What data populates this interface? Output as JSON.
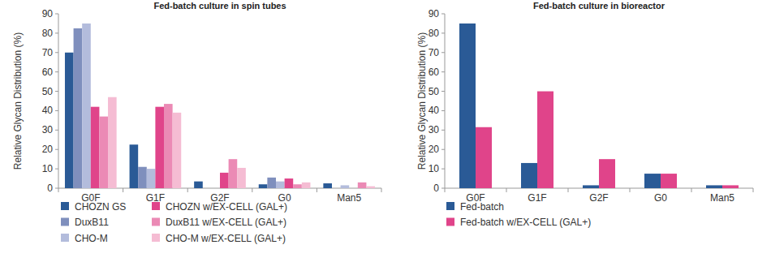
{
  "chart_data": [
    {
      "type": "bar",
      "title": "Fed-batch culture in spin tubes",
      "y_label": "Relative Glycan Distribution (%)",
      "categories": [
        "G0F",
        "G1F",
        "G2F",
        "G0",
        "Man5"
      ],
      "series": [
        {
          "name": "CHOZN GS",
          "color": "#2a5a96",
          "values": [
            70,
            22.5,
            3.5,
            2,
            2.5
          ]
        },
        {
          "name": "DuxB11",
          "color": "#7f8fbd",
          "values": [
            82.5,
            11,
            0,
            5.5,
            0
          ]
        },
        {
          "name": "CHO-M",
          "color": "#b3bcdc",
          "values": [
            85,
            10,
            0,
            3.5,
            1.5
          ]
        },
        {
          "name": "CHOZN w/EX-CELL (GAL+)",
          "color": "#e0448a",
          "values": [
            42,
            42,
            8,
            5,
            0
          ]
        },
        {
          "name": "DuxB11 w/EX-CELL (GAL+)",
          "color": "#eb8ab5",
          "values": [
            37,
            43.5,
            15,
            2,
            3
          ]
        },
        {
          "name": "CHO-M w/EX-CELL (GAL+)",
          "color": "#f5bcd3",
          "values": [
            47,
            39,
            10.5,
            3,
            1
          ]
        }
      ],
      "ylim": [
        0,
        90
      ],
      "yticks": [
        0,
        10,
        20,
        30,
        40,
        50,
        60,
        70,
        80,
        90
      ],
      "grid": false,
      "legend": "bottom"
    },
    {
      "type": "bar",
      "title": "Fed-batch culture in bioreactor",
      "y_label": "Relative Glycan Distribution (%)",
      "categories": [
        "G0F",
        "G1F",
        "G2F",
        "G0",
        "Man5"
      ],
      "series": [
        {
          "name": "Fed-batch",
          "color": "#2a5a96",
          "values": [
            85,
            13,
            1.5,
            7.5,
            1.5
          ]
        },
        {
          "name": "Fed-batch w/EX-CELL (GAL+)",
          "color": "#e0448a",
          "values": [
            31.5,
            50,
            15,
            7.5,
            1.5
          ]
        }
      ],
      "ylim": [
        0,
        90
      ],
      "yticks": [
        0,
        10,
        20,
        30,
        40,
        50,
        60,
        70,
        80,
        90
      ],
      "grid": false,
      "legend": "bottom"
    }
  ]
}
